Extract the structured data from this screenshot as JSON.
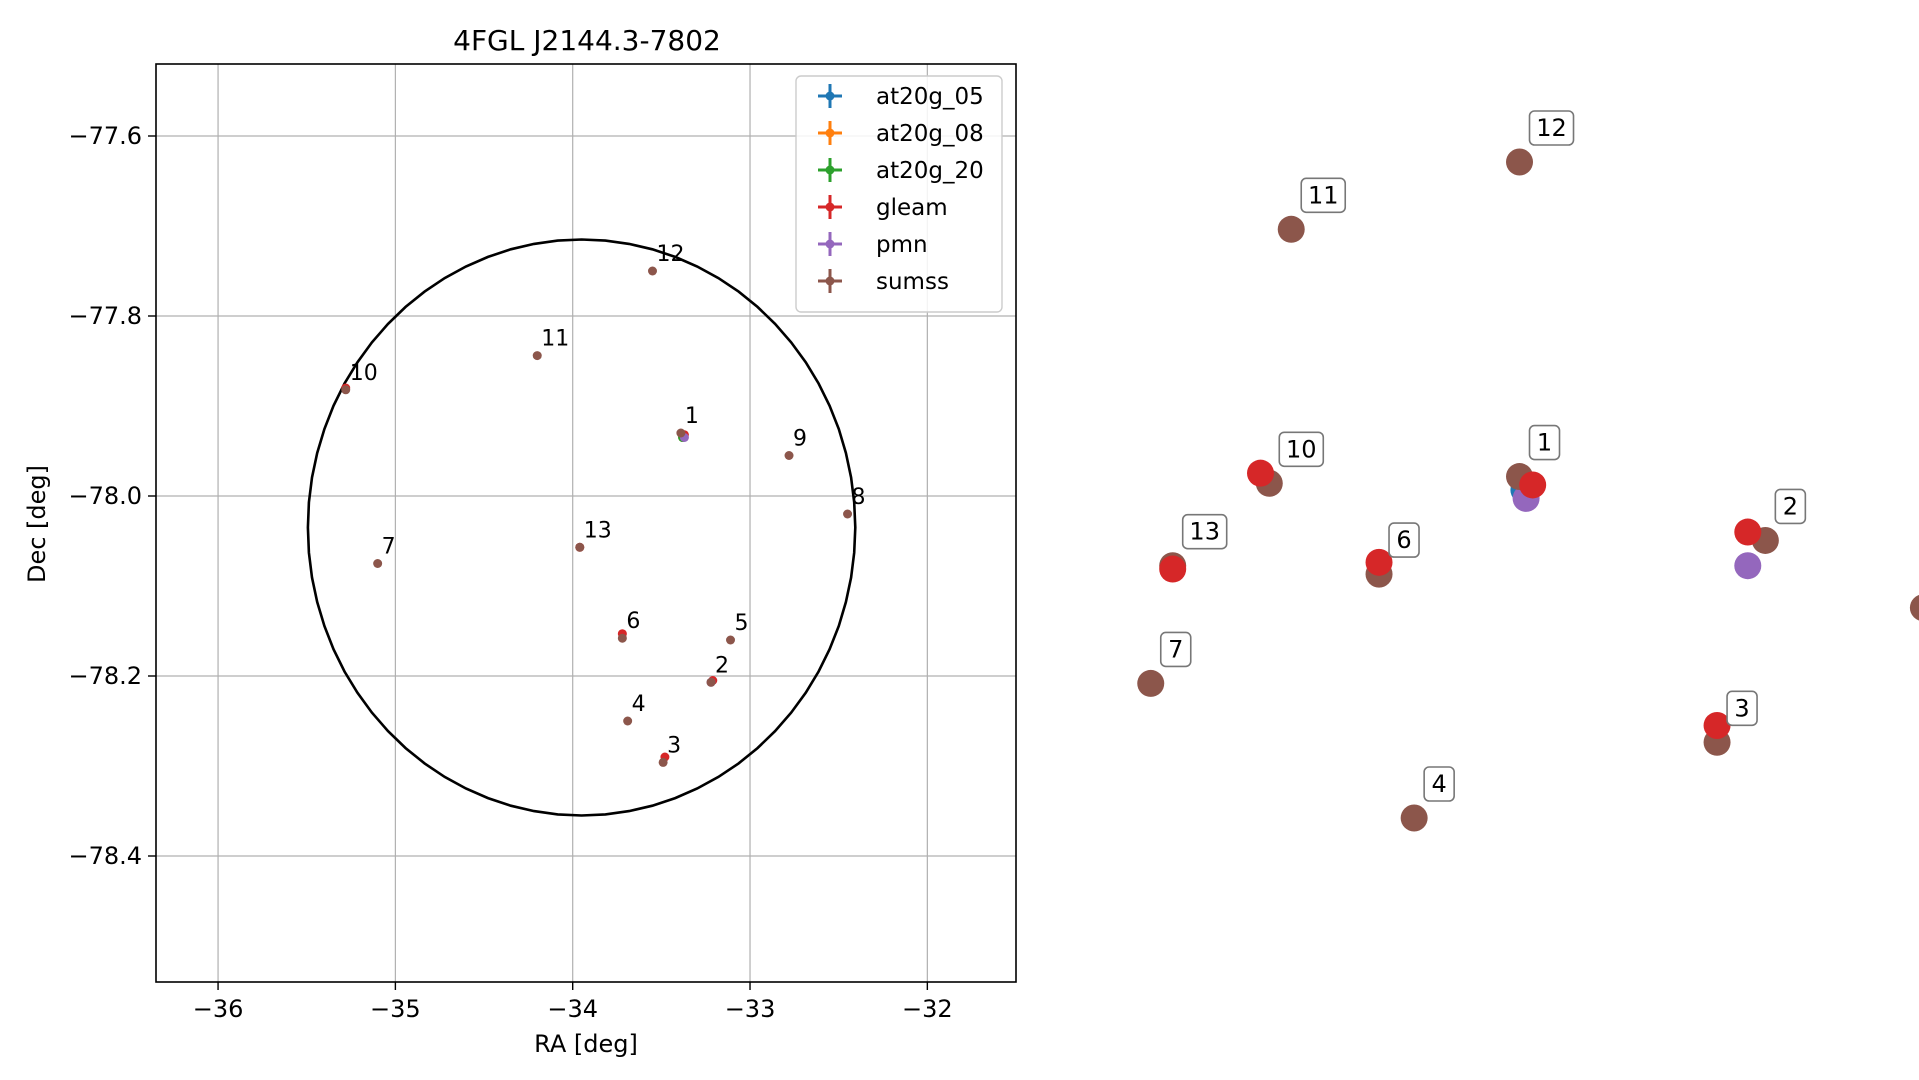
{
  "chart_data": [
    {
      "type": "scatter",
      "title": "4FGL J2144.3-7802",
      "xlabel": "RA [deg]",
      "ylabel": "Dec [deg]",
      "xlim": [
        -36.35,
        -31.5
      ],
      "ylim": [
        -78.54,
        -77.52
      ],
      "xticks": [
        -36,
        -35,
        -34,
        -33,
        -32
      ],
      "xtick_labels": [
        "−36",
        "−35",
        "−34",
        "−33",
        "−32"
      ],
      "yticks": [
        -77.6,
        -77.8,
        -78.0,
        -78.2,
        -78.4
      ],
      "ytick_labels": [
        "−77.6",
        "−77.8",
        "−78.0",
        "−78.2",
        "−78.4"
      ],
      "grid": true,
      "legend_position": "top-right",
      "circle": {
        "center_ra": -33.95,
        "center_dec": -78.035,
        "radius_deg": 0.32
      },
      "series": [
        {
          "name": "at20g_05",
          "color": "#1f77b4",
          "points": [
            {
              "ra": -33.38,
              "dec": -77.935,
              "label": ""
            }
          ]
        },
        {
          "name": "at20g_08",
          "color": "#ff7f0e",
          "points": [
            {
              "ra": -33.38,
              "dec": -77.935,
              "label": ""
            }
          ]
        },
        {
          "name": "at20g_20",
          "color": "#2ca02c",
          "points": [
            {
              "ra": -33.38,
              "dec": -77.935,
              "label": ""
            }
          ]
        },
        {
          "name": "gleam",
          "color": "#d62728",
          "points": [
            {
              "ra": -33.37,
              "dec": -77.932,
              "label": ""
            },
            {
              "ra": -33.21,
              "dec": -78.205,
              "label": ""
            },
            {
              "ra": -33.48,
              "dec": -78.29,
              "label": ""
            },
            {
              "ra": -33.72,
              "dec": -78.153,
              "label": ""
            },
            {
              "ra": -35.28,
              "dec": -77.88,
              "label": ""
            },
            {
              "ra": -33.96,
              "dec": -78.057,
              "label": ""
            }
          ]
        },
        {
          "name": "pmn",
          "color": "#9467bd",
          "points": [
            {
              "ra": -33.37,
              "dec": -77.935,
              "label": ""
            },
            {
              "ra": -33.22,
              "dec": -78.207,
              "label": ""
            }
          ]
        },
        {
          "name": "sumss",
          "color": "#8c564b",
          "points": [
            {
              "ra": -33.39,
              "dec": -77.93,
              "label": "1"
            },
            {
              "ra": -33.22,
              "dec": -78.207,
              "label": "2"
            },
            {
              "ra": -33.49,
              "dec": -78.296,
              "label": "3"
            },
            {
              "ra": -33.69,
              "dec": -78.25,
              "label": "4"
            },
            {
              "ra": -33.11,
              "dec": -78.16,
              "label": "5"
            },
            {
              "ra": -33.72,
              "dec": -78.158,
              "label": "6"
            },
            {
              "ra": -35.1,
              "dec": -78.075,
              "label": "7"
            },
            {
              "ra": -32.45,
              "dec": -78.02,
              "label": "8"
            },
            {
              "ra": -32.78,
              "dec": -77.955,
              "label": "9"
            },
            {
              "ra": -35.28,
              "dec": -77.882,
              "label": "10"
            },
            {
              "ra": -34.2,
              "dec": -77.844,
              "label": "11"
            },
            {
              "ra": -33.55,
              "dec": -77.75,
              "label": "12"
            },
            {
              "ra": -33.96,
              "dec": -78.057,
              "label": "13"
            }
          ]
        }
      ]
    },
    {
      "type": "scatter",
      "title": "",
      "axes_visible": false,
      "series": [
        {
          "name": "at20g_05",
          "color": "#1f77b4",
          "points": [
            {
              "u": 1.0,
              "v": 0.0,
              "label": ""
            }
          ]
        },
        {
          "name": "pmn",
          "color": "#9467bd",
          "points": [
            {
              "u": 1.05,
              "v": -0.05,
              "label": ""
            },
            {
              "u": 6.1,
              "v": -0.45,
              "label": ""
            }
          ]
        },
        {
          "name": "sumss",
          "color": "#8c564b",
          "points": [
            {
              "u": 0.9,
              "v": 0.08,
              "label": "1"
            },
            {
              "u": 6.5,
              "v": -0.3,
              "label": "2"
            },
            {
              "u": 5.4,
              "v": -1.5,
              "label": "3"
            },
            {
              "u": -1.5,
              "v": -1.95,
              "label": "4"
            },
            {
              "u": 10.1,
              "v": -0.7,
              "label": "5"
            },
            {
              "u": -2.3,
              "v": -0.5,
              "label": "6"
            },
            {
              "u": -7.5,
              "v": -1.15,
              "label": "7"
            },
            {
              "u": 12.0,
              "v": 0.12,
              "label": "8"
            },
            {
              "u": 10.5,
              "v": 1.15,
              "label": "9"
            },
            {
              "u": -4.8,
              "v": 0.04,
              "label": "10"
            },
            {
              "u": -4.3,
              "v": 1.55,
              "label": "11"
            },
            {
              "u": 0.9,
              "v": 1.95,
              "label": "12"
            },
            {
              "u": -7.0,
              "v": -0.45,
              "label": "13"
            }
          ]
        },
        {
          "name": "gleam",
          "color": "#d62728",
          "points": [
            {
              "u": 1.2,
              "v": 0.03,
              "label": ""
            },
            {
              "u": 6.1,
              "v": -0.25,
              "label": ""
            },
            {
              "u": 5.4,
              "v": -1.4,
              "label": ""
            },
            {
              "u": -2.3,
              "v": -0.43,
              "label": ""
            },
            {
              "u": -5.0,
              "v": 0.1,
              "label": ""
            },
            {
              "u": -7.0,
              "v": -0.47,
              "label": ""
            }
          ]
        }
      ]
    }
  ]
}
